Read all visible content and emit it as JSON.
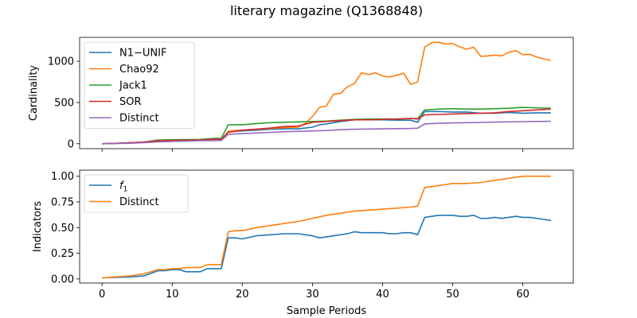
{
  "figure": {
    "title": "literary magazine (Q1368848)"
  },
  "colors": {
    "blue": "#1f77b4",
    "orange": "#ff7f0e",
    "green": "#2ca02c",
    "red": "#d62728",
    "purple": "#9467bd"
  },
  "chart_data": [
    {
      "type": "line",
      "ylabel": "Cardinality",
      "xlabel": "",
      "xlim": [
        -3.2,
        67.2
      ],
      "ylim": [
        -60,
        1290
      ],
      "xticks": [
        0,
        10,
        20,
        30,
        40,
        50,
        60
      ],
      "xtick_labels_visible": false,
      "yticks": [
        0,
        500,
        1000
      ],
      "ytick_labels": [
        "0",
        "500",
        "1000"
      ],
      "grid": false,
      "legend": "upper left",
      "series": [
        {
          "name": "N1−UNIF",
          "color": "#1f77b4",
          "x": [
            0,
            2,
            4,
            6,
            8,
            10,
            12,
            14,
            16,
            17,
            18,
            19,
            20,
            22,
            24,
            26,
            28,
            30,
            31,
            32,
            34,
            36,
            38,
            40,
            42,
            44,
            45,
            46,
            48,
            50,
            52,
            54,
            56,
            58,
            60,
            62,
            64
          ],
          "y": [
            0,
            5,
            10,
            18,
            30,
            35,
            38,
            40,
            42,
            42,
            150,
            150,
            155,
            165,
            175,
            180,
            180,
            200,
            230,
            240,
            270,
            290,
            290,
            290,
            285,
            285,
            260,
            390,
            390,
            385,
            385,
            370,
            370,
            380,
            370,
            375,
            375
          ]
        },
        {
          "name": "Chao92",
          "color": "#ff7f0e",
          "x": [
            0,
            2,
            4,
            6,
            8,
            10,
            12,
            14,
            16,
            17,
            18,
            19,
            20,
            22,
            24,
            26,
            28,
            29,
            30,
            31,
            32,
            33,
            34,
            35,
            36,
            37,
            38,
            39,
            40,
            41,
            42,
            43,
            44,
            45,
            46,
            47,
            48,
            49,
            50,
            51,
            52,
            53,
            54,
            55,
            56,
            57,
            58,
            59,
            60,
            61,
            62,
            63,
            64
          ],
          "y": [
            0,
            5,
            10,
            18,
            30,
            35,
            38,
            40,
            42,
            42,
            150,
            160,
            165,
            175,
            185,
            195,
            200,
            250,
            330,
            440,
            460,
            600,
            610,
            690,
            730,
            860,
            840,
            860,
            820,
            810,
            830,
            855,
            720,
            750,
            1170,
            1225,
            1230,
            1210,
            1215,
            1175,
            1145,
            1170,
            1060,
            1065,
            1075,
            1065,
            1110,
            1130,
            1080,
            1085,
            1050,
            1030,
            1010
          ]
        },
        {
          "name": "Jack1",
          "color": "#2ca02c",
          "x": [
            0,
            2,
            4,
            6,
            8,
            10,
            12,
            14,
            16,
            17,
            18,
            19,
            20,
            22,
            24,
            26,
            28,
            30,
            32,
            34,
            36,
            38,
            40,
            42,
            44,
            45,
            46,
            48,
            50,
            52,
            54,
            56,
            58,
            60,
            62,
            64
          ],
          "y": [
            0,
            5,
            12,
            20,
            45,
            48,
            50,
            52,
            65,
            65,
            230,
            230,
            230,
            245,
            255,
            260,
            265,
            270,
            275,
            285,
            295,
            300,
            300,
            300,
            305,
            305,
            410,
            420,
            425,
            420,
            420,
            425,
            430,
            440,
            435,
            430
          ]
        },
        {
          "name": "SOR",
          "color": "#d62728",
          "x": [
            0,
            2,
            4,
            6,
            8,
            10,
            12,
            14,
            16,
            17,
            18,
            19,
            20,
            22,
            24,
            26,
            28,
            30,
            32,
            34,
            36,
            38,
            40,
            42,
            44,
            45,
            46,
            48,
            50,
            52,
            54,
            56,
            58,
            60,
            62,
            64
          ],
          "y": [
            0,
            5,
            12,
            20,
            35,
            40,
            42,
            45,
            55,
            55,
            140,
            150,
            165,
            175,
            190,
            210,
            215,
            260,
            270,
            280,
            290,
            290,
            295,
            300,
            305,
            300,
            350,
            355,
            360,
            365,
            370,
            375,
            390,
            400,
            410,
            420
          ]
        },
        {
          "name": "Distinct",
          "color": "#9467bd",
          "x": [
            0,
            2,
            4,
            6,
            8,
            10,
            12,
            14,
            16,
            17,
            18,
            19,
            20,
            22,
            24,
            26,
            28,
            30,
            32,
            34,
            36,
            38,
            40,
            42,
            44,
            45,
            46,
            48,
            50,
            52,
            54,
            56,
            58,
            60,
            62,
            64
          ],
          "y": [
            0,
            3,
            6,
            12,
            22,
            28,
            32,
            36,
            38,
            40,
            115,
            118,
            122,
            130,
            138,
            145,
            150,
            155,
            160,
            170,
            175,
            178,
            180,
            183,
            185,
            188,
            240,
            248,
            252,
            255,
            258,
            262,
            265,
            268,
            270,
            272
          ]
        }
      ]
    },
    {
      "type": "line",
      "ylabel": "Indicators",
      "xlabel": "Sample Periods",
      "xlim": [
        -3.2,
        67.2
      ],
      "ylim": [
        -0.04,
        1.06
      ],
      "xticks": [
        0,
        10,
        20,
        30,
        40,
        50,
        60
      ],
      "xtick_labels": [
        "0",
        "10",
        "20",
        "30",
        "40",
        "50",
        "60"
      ],
      "yticks": [
        0.0,
        0.25,
        0.5,
        0.75,
        1.0
      ],
      "ytick_labels": [
        "0.00",
        "0.25",
        "0.50",
        "0.75",
        "1.00"
      ],
      "grid": false,
      "legend": "upper left",
      "series": [
        {
          "name": "f1",
          "color": "#1f77b4",
          "x": [
            0,
            2,
            4,
            6,
            8,
            9,
            10,
            11,
            12,
            13,
            14,
            15,
            16,
            17,
            18,
            19,
            20,
            22,
            24,
            26,
            27,
            28,
            29,
            30,
            31,
            32,
            33,
            34,
            35,
            36,
            37,
            38,
            39,
            40,
            41,
            42,
            43,
            44,
            45,
            46,
            48,
            49,
            50,
            51,
            52,
            53,
            54,
            55,
            56,
            57,
            58,
            59,
            60,
            61,
            62,
            63,
            64
          ],
          "y": [
            0.01,
            0.015,
            0.02,
            0.03,
            0.08,
            0.08,
            0.09,
            0.09,
            0.07,
            0.07,
            0.07,
            0.1,
            0.1,
            0.1,
            0.4,
            0.4,
            0.39,
            0.42,
            0.43,
            0.44,
            0.44,
            0.44,
            0.43,
            0.42,
            0.4,
            0.41,
            0.42,
            0.43,
            0.44,
            0.46,
            0.45,
            0.45,
            0.45,
            0.45,
            0.44,
            0.44,
            0.45,
            0.45,
            0.43,
            0.6,
            0.62,
            0.62,
            0.62,
            0.61,
            0.61,
            0.62,
            0.59,
            0.59,
            0.6,
            0.59,
            0.6,
            0.61,
            0.6,
            0.6,
            0.59,
            0.58,
            0.57
          ]
        },
        {
          "name": "Distinct",
          "color": "#ff7f0e",
          "x": [
            0,
            2,
            4,
            6,
            8,
            9,
            10,
            11,
            12,
            13,
            14,
            15,
            16,
            17,
            18,
            19,
            20,
            22,
            24,
            26,
            28,
            30,
            32,
            34,
            36,
            38,
            40,
            42,
            44,
            45,
            46,
            47,
            48,
            50,
            52,
            54,
            56,
            58,
            60,
            62,
            64
          ],
          "y": [
            0.01,
            0.02,
            0.03,
            0.05,
            0.09,
            0.09,
            0.1,
            0.1,
            0.11,
            0.11,
            0.11,
            0.14,
            0.14,
            0.14,
            0.46,
            0.47,
            0.47,
            0.5,
            0.52,
            0.54,
            0.56,
            0.59,
            0.62,
            0.64,
            0.66,
            0.67,
            0.68,
            0.69,
            0.7,
            0.71,
            0.89,
            0.9,
            0.91,
            0.93,
            0.93,
            0.94,
            0.96,
            0.98,
            1.0,
            1.0,
            1.0
          ]
        }
      ]
    }
  ]
}
